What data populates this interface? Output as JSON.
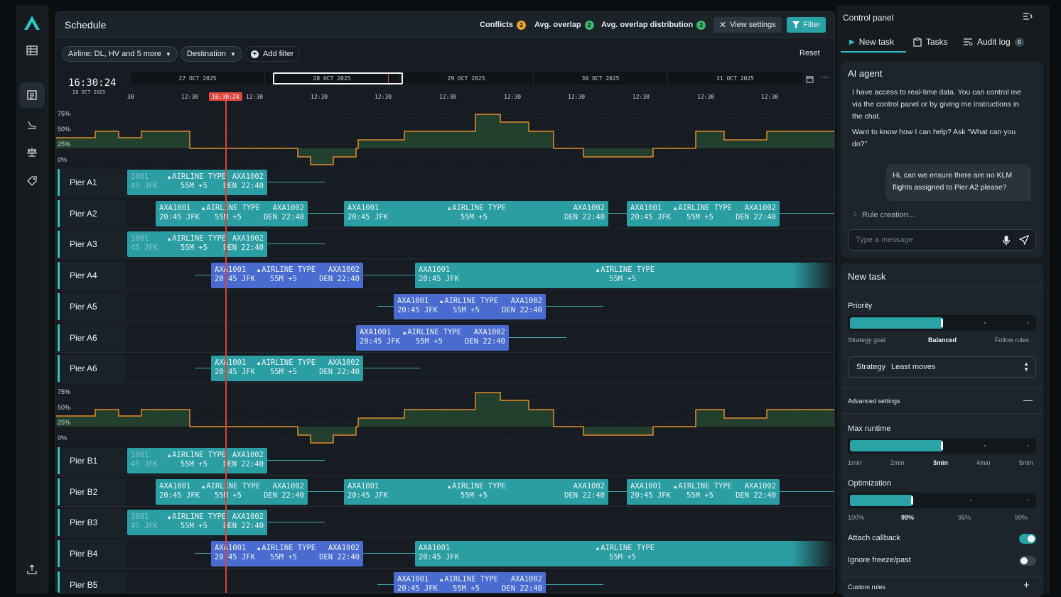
{
  "rail": {
    "icons": [
      "logo-icon",
      "table-icon",
      "schedule-icon",
      "arrivals-icon",
      "balance-icon",
      "tag-icon",
      "export-icon"
    ]
  },
  "schedule": {
    "title": "Schedule",
    "conflicts_label": "Conflicts",
    "conflicts_count": "2",
    "avg_overlap_label": "Avg. overlap",
    "avg_overlap_count": "2",
    "avg_dist_label": "Avg. overlap distribution",
    "avg_dist_count": "2",
    "view_settings_label": "View settings",
    "filter_label": "Filter",
    "filters": {
      "airline": "Airline: DL, HV and 5 more",
      "destination": "Destination",
      "add": "Add filter"
    },
    "reset_label": "Reset",
    "clock_time": "16:30:24",
    "clock_date": "28 OCT 2025",
    "dates": [
      "27 OCT 2025",
      "28 OCT 2025",
      "29 OCT 2025",
      "30 OCT 2025",
      "31 OCT 2025"
    ],
    "ticks": [
      "30",
      "12:30",
      "12:30",
      "12:30",
      "12:30",
      "12:30",
      "12:30",
      "12:30",
      "12:30",
      "12:30",
      "12:30"
    ],
    "now_tag": "16:30:24",
    "yticks": [
      "75%",
      "50%",
      "25%",
      "0%"
    ],
    "piers_a": [
      "Pier A1",
      "Pier A2",
      "Pier A3",
      "Pier A4",
      "Pier A5",
      "Pier A6",
      "Pier A6"
    ],
    "piers_b": [
      "Pier B1",
      "Pier B2",
      "Pier B3",
      "Pier B4",
      "Pier B5"
    ],
    "flight": {
      "f1": "AXA1001",
      "type": "AIRLINE TYPE",
      "f2": "AXA1002",
      "dep": "20:45 JFK",
      "dur": "55M +5",
      "arr": "DEN 22:40",
      "f1_cut": "1001",
      "dep_cut": "45 JFK",
      "dep_cut2": "0:45 JFK",
      "f2_cut": "AXA1002",
      "arr_cut": "DEN 22:40"
    },
    "colors": {
      "teal": "#2b9ea3",
      "blue": "#4a6cd1",
      "now": "#d6453b"
    }
  },
  "control": {
    "title": "Control panel",
    "tabs": [
      "New task",
      "Tasks",
      "Audit log"
    ],
    "audit_count": "0",
    "agent": {
      "title": "AI agent",
      "p1": "I have access to real-time data. You can control me via the control panel or by giving me instructions in the chat.",
      "p2": "Want to know how I can help? Ask “What can you do?”",
      "user_msg": "Hi, can we ensure there are no KLM flights assigned to Pier A2 please?",
      "status": "Rule creation...",
      "input_placeholder": "Type a message"
    },
    "new_task": {
      "title": "New task",
      "priority_label": "Priority",
      "priority_value": 0.5,
      "priority_scale": [
        "Strategy goal",
        "Balanced",
        "Follow rules"
      ],
      "strategy_label": "Strategy",
      "strategy_value": "Least moves",
      "advanced_label": "Advanced settings",
      "max_runtime_label": "Max runtime",
      "max_runtime_value": "3min",
      "runtime_scale": [
        "1min",
        "2min",
        "3min",
        "4min",
        "5min"
      ],
      "optimization_label": "Optimization",
      "optimization_value": "99%",
      "optimization_scale": [
        "100%",
        "99%",
        "95%",
        "90%"
      ],
      "attach_callback_label": "Attach callback",
      "attach_callback": true,
      "ignore_freeze_label": "Ignore freeze/past",
      "ignore_freeze": false,
      "custom_rules_label": "Custom rules"
    }
  }
}
